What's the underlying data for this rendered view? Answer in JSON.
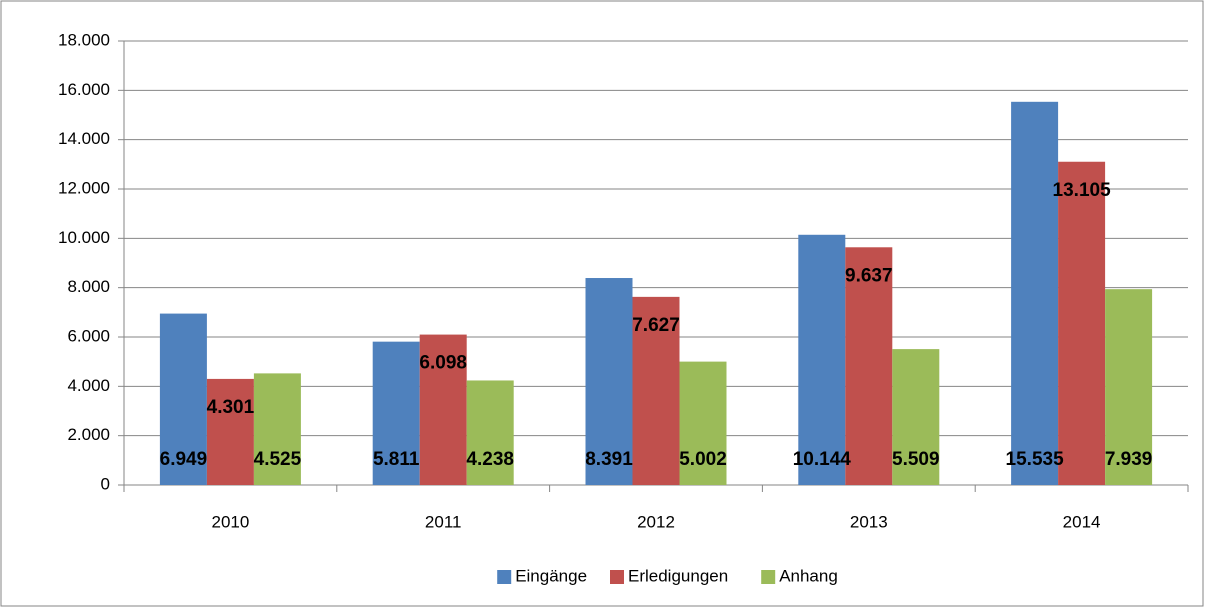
{
  "chart_data": {
    "type": "bar",
    "categories": [
      "2010",
      "2011",
      "2012",
      "2013",
      "2014"
    ],
    "series": [
      {
        "name": "Eingänge",
        "color": "#4f81bd",
        "values": [
          6949,
          5811,
          8391,
          10144,
          15535
        ],
        "value_labels": [
          "6.949",
          "5.811",
          "8.391",
          "10.144",
          "15.535"
        ]
      },
      {
        "name": "Erledigungen",
        "color": "#c0504d",
        "values": [
          4301,
          6098,
          7627,
          9637,
          13105
        ],
        "value_labels": [
          "4.301",
          "6.098",
          "7.627",
          "9.637",
          "13.105"
        ]
      },
      {
        "name": "Anhang",
        "color": "#9bbb59",
        "values": [
          4525,
          4238,
          5002,
          5509,
          7939
        ],
        "value_labels": [
          "4.525",
          "4.238",
          "5.002",
          "5.509",
          "7.939"
        ]
      }
    ],
    "ylim": [
      0,
      18000
    ],
    "yticks": [
      0,
      {
        "value": 2000,
        "label": "2.000"
      },
      {
        "value": 4000,
        "label": "4.000"
      },
      {
        "value": 6000,
        "label": "6.000"
      },
      {
        "value": 8000,
        "label": "8.000"
      },
      {
        "value": 10000,
        "label": "10.000"
      },
      {
        "value": 12000,
        "label": "12.000"
      },
      {
        "value": 14000,
        "label": "14.000"
      },
      {
        "value": 16000,
        "label": "16.000"
      },
      {
        "value": 18000,
        "label": "18.000"
      }
    ],
    "grid": true,
    "legend": "bottom"
  }
}
